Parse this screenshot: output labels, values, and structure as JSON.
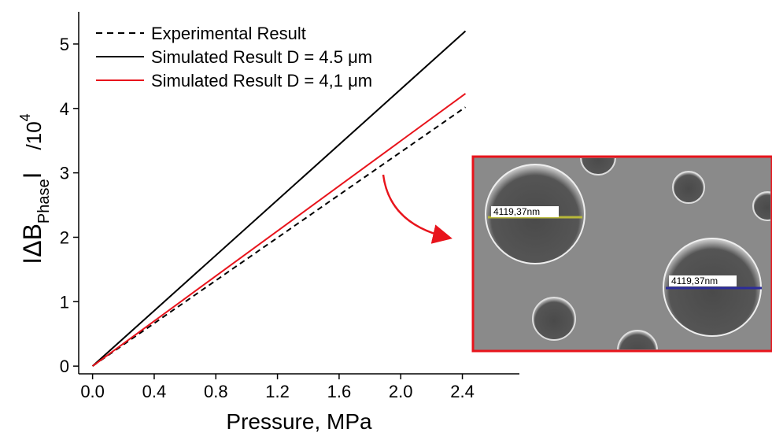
{
  "chart_data": {
    "type": "line",
    "x_label": "Pressure, MPa",
    "y_label_parts": [
      "IΔB",
      "Phase",
      "I",
      "/10",
      "4"
    ],
    "xlim": [
      -0.09,
      2.77
    ],
    "ylim": [
      -0.12,
      5.5
    ],
    "xticks": [
      {
        "value": 0,
        "label": "0.0"
      },
      {
        "value": 0.4,
        "label": "0.4"
      },
      {
        "value": 0.8,
        "label": "0.8"
      },
      {
        "value": 1.2,
        "label": "1.2"
      },
      {
        "value": 1.6,
        "label": "1.6"
      },
      {
        "value": 2.0,
        "label": "2.0"
      },
      {
        "value": 2.4,
        "label": "2.4"
      }
    ],
    "yticks": [
      0,
      1,
      2,
      3,
      4,
      5
    ],
    "legend": "top-left",
    "series": [
      {
        "name": "Experimental Result",
        "color": "#000000",
        "dash": true,
        "x": [
          0,
          2.42
        ],
        "values": [
          0,
          4.02
        ]
      },
      {
        "name": "Simulated Result D = 4.5 μm",
        "color": "#000000",
        "dash": false,
        "x": [
          0,
          2.42
        ],
        "values": [
          0,
          5.2
        ]
      },
      {
        "name": "Simulated Result D = 4,1 μm",
        "color": "#e8141c",
        "dash": false,
        "x": [
          0,
          2.42
        ],
        "values": [
          0,
          4.23
        ]
      }
    ],
    "annotations": [
      "4119,37nm",
      "4119,37nm"
    ]
  }
}
